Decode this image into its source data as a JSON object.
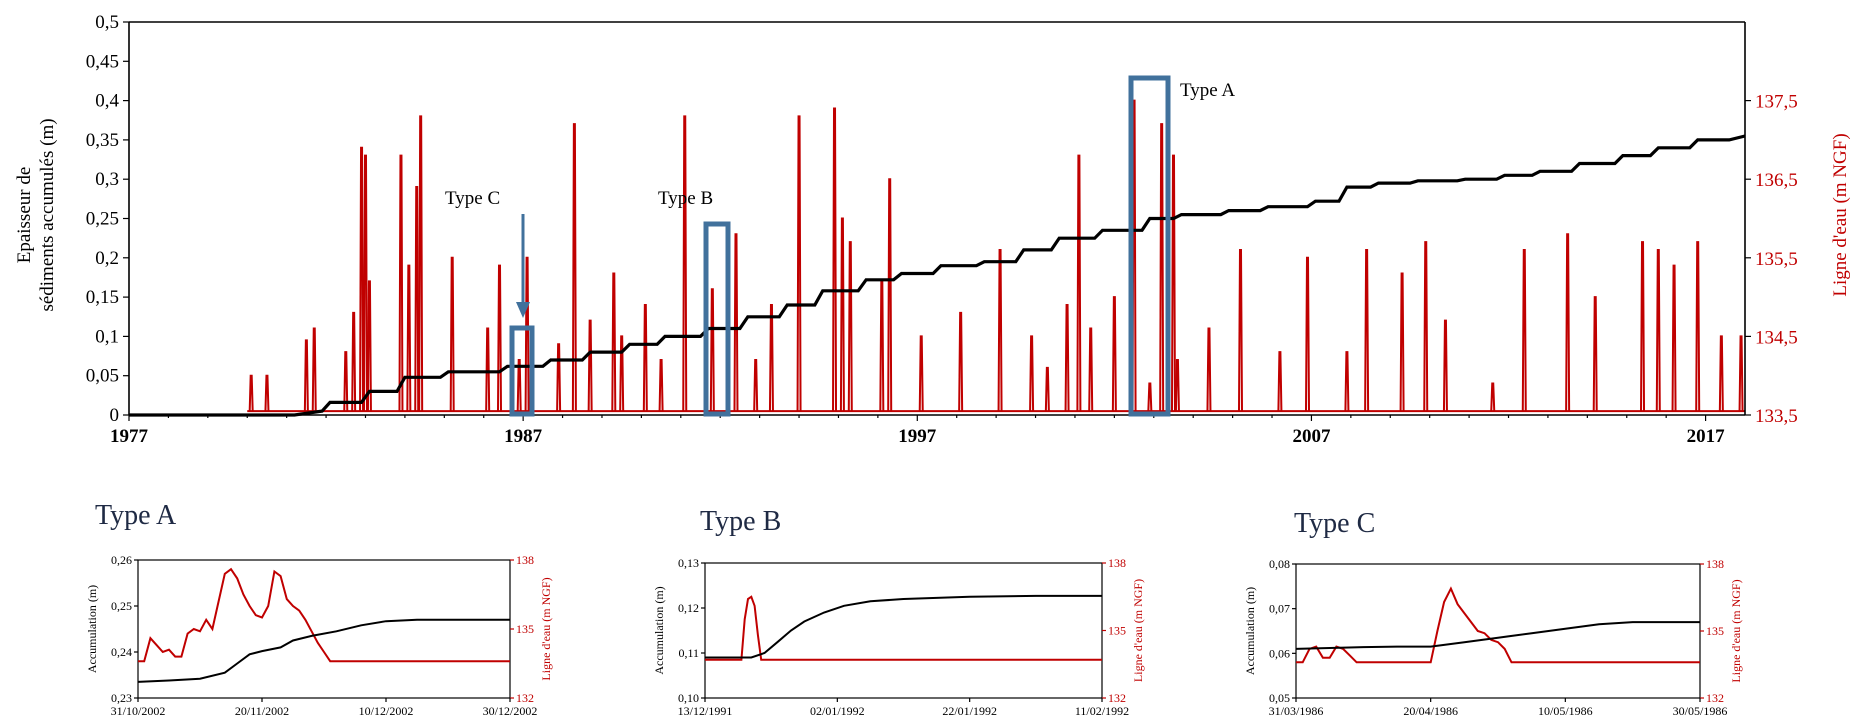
{
  "charts": {
    "main": {
      "y_left_label_line1": "Epaisseur de",
      "y_left_label_line2": "sédiments accumulés (m)",
      "y_right_label": "Ligne d'eau (m NGF)",
      "x_ticks": [
        "1977",
        "1987",
        "1997",
        "2007",
        "2017"
      ],
      "y_left_ticks": [
        "0",
        "0,05",
        "0,1",
        "0,15",
        "0,2",
        "0,25",
        "0,3",
        "0,35",
        "0,4",
        "0,45",
        "0,5"
      ],
      "y_right_ticks": [
        "133,5",
        "134,5",
        "135,5",
        "136,5",
        "137,5"
      ],
      "annotations": {
        "type_a": "Type A",
        "type_b": "Type B",
        "type_c": "Type C"
      }
    },
    "panel_a": {
      "title": "Type A",
      "y_left_label": "Accumulation (m)",
      "y_right_label": "Ligne d'eau (m NGF)",
      "x_ticks": [
        "31/10/2002",
        "20/11/2002",
        "10/12/2002",
        "30/12/2002"
      ],
      "y_left_ticks": [
        "0,23",
        "0,24",
        "0,25",
        "0,26"
      ],
      "y_right_ticks": [
        "132",
        "135",
        "138"
      ]
    },
    "panel_b": {
      "title": "Type B",
      "y_left_label": "Accumulation (m)",
      "y_right_label": "Ligne d'eau (m NGF)",
      "x_ticks": [
        "13/12/1991",
        "02/01/1992",
        "22/01/1992",
        "11/02/1992"
      ],
      "y_left_ticks": [
        "0,10",
        "0,11",
        "0,12",
        "0,13"
      ],
      "y_right_ticks": [
        "132",
        "135",
        "138"
      ]
    },
    "panel_c": {
      "title": "Type C",
      "y_left_label": "Accumulation (m)",
      "y_right_label": "Ligne d'eau (m NGF)",
      "x_ticks": [
        "31/03/1986",
        "20/04/1986",
        "10/05/1986",
        "30/05/1986"
      ],
      "y_left_ticks": [
        "0,05",
        "0,06",
        "0,07",
        "0,08"
      ],
      "y_right_ticks": [
        "132",
        "135",
        "138"
      ]
    }
  },
  "chart_data": [
    {
      "type": "line",
      "xlim": [
        1977,
        2018
      ],
      "ylim_left": [
        0,
        0.5
      ],
      "ylim_right": [
        133.5,
        138.5
      ],
      "x_axis": "year",
      "grid": false,
      "series": [
        {
          "axis": "left",
          "color": "#000000",
          "x": [
            1977,
            1981.2,
            1981.9,
            1982.1,
            1982.9,
            1983.1,
            1983.8,
            1984.0,
            1984.9,
            1985.1,
            1986.4,
            1986.6,
            1987.5,
            1987.7,
            1988.5,
            1988.7,
            1989.5,
            1989.7,
            1990.4,
            1990.6,
            1991.5,
            1991.7,
            1992.5,
            1992.7,
            1993.5,
            1993.7,
            1994.4,
            1994.6,
            1995.5,
            1995.7,
            1996.4,
            1996.6,
            1997.4,
            1997.6,
            1998.5,
            1998.7,
            1999.5,
            1999.7,
            2000.4,
            2000.6,
            2001.5,
            2001.7,
            2002.7,
            2002.9,
            2003.5,
            2003.7,
            2004.7,
            2004.9,
            2005.7,
            2005.9,
            2006.9,
            2007.1,
            2007.7,
            2007.9,
            2008.5,
            2008.7,
            2009.5,
            2009.7,
            2010.7,
            2010.9,
            2011.7,
            2011.9,
            2012.6,
            2012.8,
            2013.6,
            2013.8,
            2014.7,
            2014.9,
            2015.6,
            2015.8,
            2016.6,
            2016.8,
            2017.6,
            2018
          ],
          "y": [
            0,
            0,
            0.005,
            0.016,
            0.016,
            0.03,
            0.03,
            0.048,
            0.048,
            0.055,
            0.055,
            0.062,
            0.062,
            0.07,
            0.07,
            0.08,
            0.08,
            0.09,
            0.09,
            0.1,
            0.1,
            0.11,
            0.11,
            0.125,
            0.125,
            0.14,
            0.14,
            0.158,
            0.158,
            0.172,
            0.172,
            0.18,
            0.18,
            0.19,
            0.19,
            0.195,
            0.195,
            0.21,
            0.21,
            0.225,
            0.225,
            0.235,
            0.235,
            0.25,
            0.25,
            0.255,
            0.255,
            0.26,
            0.26,
            0.265,
            0.265,
            0.272,
            0.272,
            0.29,
            0.29,
            0.295,
            0.295,
            0.298,
            0.298,
            0.3,
            0.3,
            0.305,
            0.305,
            0.31,
            0.31,
            0.32,
            0.32,
            0.33,
            0.33,
            0.34,
            0.34,
            0.35,
            0.35,
            0.355
          ]
        },
        {
          "axis": "right",
          "color": "#c00000",
          "baseline": 133.55,
          "peaks": [
            [
              1980.1,
              134.0
            ],
            [
              1980.5,
              134.0
            ],
            [
              1981.5,
              134.45
            ],
            [
              1981.7,
              134.6
            ],
            [
              1982.5,
              134.3
            ],
            [
              1982.7,
              134.8
            ],
            [
              1982.9,
              136.9
            ],
            [
              1983.0,
              136.8
            ],
            [
              1983.1,
              135.2
            ],
            [
              1983.9,
              136.8
            ],
            [
              1984.1,
              135.4
            ],
            [
              1984.3,
              136.4
            ],
            [
              1984.4,
              137.3
            ],
            [
              1985.2,
              135.5
            ],
            [
              1986.1,
              134.6
            ],
            [
              1986.4,
              135.4
            ],
            [
              1986.9,
              134.2
            ],
            [
              1987.1,
              135.5
            ],
            [
              1987.9,
              134.4
            ],
            [
              1988.3,
              137.2
            ],
            [
              1988.7,
              134.7
            ],
            [
              1989.3,
              135.3
            ],
            [
              1989.5,
              134.5
            ],
            [
              1990.1,
              134.9
            ],
            [
              1990.5,
              134.2
            ],
            [
              1991.1,
              137.3
            ],
            [
              1991.8,
              135.1
            ],
            [
              1992.4,
              135.8
            ],
            [
              1992.9,
              134.2
            ],
            [
              1993.3,
              134.9
            ],
            [
              1994.0,
              137.3
            ],
            [
              1994.9,
              137.4
            ],
            [
              1995.1,
              136.0
            ],
            [
              1995.3,
              135.7
            ],
            [
              1996.1,
              135.2
            ],
            [
              1996.3,
              136.5
            ],
            [
              1997.1,
              134.5
            ],
            [
              1998.1,
              134.8
            ],
            [
              1999.1,
              135.6
            ],
            [
              1999.9,
              134.5
            ],
            [
              2000.3,
              134.1
            ],
            [
              2000.8,
              134.9
            ],
            [
              2001.1,
              136.8
            ],
            [
              2001.4,
              134.6
            ],
            [
              2002.0,
              135.0
            ],
            [
              2002.5,
              137.5
            ],
            [
              2002.9,
              133.9
            ],
            [
              2003.2,
              137.2
            ],
            [
              2003.5,
              136.8
            ],
            [
              2003.6,
              134.2
            ],
            [
              2004.4,
              134.6
            ],
            [
              2005.2,
              135.6
            ],
            [
              2006.2,
              134.3
            ],
            [
              2006.9,
              135.5
            ],
            [
              2007.9,
              134.3
            ],
            [
              2008.4,
              135.6
            ],
            [
              2009.3,
              135.3
            ],
            [
              2009.9,
              135.7
            ],
            [
              2010.4,
              134.7
            ],
            [
              2011.6,
              133.9
            ],
            [
              2012.4,
              135.6
            ],
            [
              2013.5,
              135.8
            ],
            [
              2014.2,
              135.0
            ],
            [
              2015.4,
              135.7
            ],
            [
              2015.8,
              135.6
            ],
            [
              2016.2,
              135.4
            ],
            [
              2016.8,
              135.7
            ],
            [
              2017.4,
              134.5
            ],
            [
              2017.9,
              134.5
            ]
          ]
        }
      ],
      "annotations": [
        {
          "label": "Type A",
          "x_range": [
            2002.5,
            2003.6
          ]
        },
        {
          "label": "Type B",
          "x_range": [
            1992.1,
            1992.7
          ]
        },
        {
          "label": "Type C",
          "x_range": [
            1986.8,
            1987.3
          ]
        }
      ]
    },
    {
      "type": "line",
      "panel": "Type A",
      "x_days": [
        0,
        60
      ],
      "ylim_left": [
        0.23,
        0.26
      ],
      "ylim_right": [
        132,
        138
      ],
      "series": [
        {
          "axis": "left",
          "color": "#000000",
          "x": [
            0,
            5,
            10,
            14,
            16,
            18,
            20,
            23,
            25,
            28,
            32,
            36,
            40,
            45,
            50,
            55,
            60
          ],
          "y": [
            0.2335,
            0.2338,
            0.2342,
            0.2355,
            0.2375,
            0.2395,
            0.2402,
            0.241,
            0.2425,
            0.2435,
            0.2445,
            0.2458,
            0.2467,
            0.247,
            0.247,
            0.247,
            0.247
          ]
        },
        {
          "axis": "right",
          "color": "#c00000",
          "x": [
            0,
            1,
            2,
            3,
            4,
            5,
            6,
            7,
            8,
            9,
            10,
            11,
            12,
            13,
            14,
            15,
            16,
            17,
            18,
            19,
            20,
            21,
            22,
            23,
            24,
            25,
            26,
            27,
            28,
            29,
            30,
            31,
            32,
            60
          ],
          "y": [
            133.6,
            133.6,
            134.6,
            134.3,
            134.0,
            134.1,
            133.8,
            133.8,
            134.8,
            135.0,
            134.9,
            135.4,
            135.0,
            136.2,
            137.4,
            137.6,
            137.2,
            136.5,
            136.0,
            135.6,
            135.5,
            136.0,
            137.5,
            137.3,
            136.3,
            136.0,
            135.8,
            135.4,
            134.9,
            134.4,
            134.0,
            133.6,
            133.6,
            133.6
          ]
        }
      ]
    },
    {
      "type": "line",
      "panel": "Type B",
      "x_days": [
        0,
        60
      ],
      "ylim_left": [
        0.1,
        0.13
      ],
      "ylim_right": [
        132,
        138
      ],
      "series": [
        {
          "axis": "left",
          "color": "#000000",
          "x": [
            0,
            7,
            9,
            11,
            13,
            15,
            18,
            21,
            25,
            30,
            40,
            50,
            60
          ],
          "y": [
            0.109,
            0.109,
            0.11,
            0.1125,
            0.115,
            0.117,
            0.119,
            0.1205,
            0.1215,
            0.122,
            0.1225,
            0.1227,
            0.1227
          ]
        },
        {
          "axis": "right",
          "color": "#c00000",
          "x": [
            0,
            5.5,
            6,
            6.5,
            7,
            7.5,
            8,
            8.5,
            9,
            60
          ],
          "y": [
            133.7,
            133.7,
            135.5,
            136.4,
            136.5,
            136.1,
            134.8,
            133.7,
            133.7,
            133.7
          ]
        }
      ]
    },
    {
      "type": "line",
      "panel": "Type C",
      "x_days": [
        0,
        60
      ],
      "ylim_left": [
        0.05,
        0.08
      ],
      "ylim_right": [
        132,
        138
      ],
      "series": [
        {
          "axis": "left",
          "color": "#000000",
          "x": [
            0,
            5,
            10,
            15,
            20,
            25,
            30,
            35,
            40,
            45,
            50,
            55,
            60
          ],
          "y": [
            0.061,
            0.0612,
            0.0614,
            0.0615,
            0.0615,
            0.0625,
            0.0635,
            0.0645,
            0.0655,
            0.0665,
            0.067,
            0.067,
            0.067
          ]
        },
        {
          "axis": "right",
          "color": "#c00000",
          "x": [
            0,
            1,
            2,
            3,
            4,
            5,
            6,
            7,
            8,
            9,
            10,
            20,
            21,
            22,
            23,
            24,
            25,
            26,
            27,
            28,
            29,
            30,
            31,
            32,
            33,
            60
          ],
          "y": [
            133.6,
            133.6,
            134.2,
            134.3,
            133.8,
            133.8,
            134.3,
            134.2,
            133.9,
            133.6,
            133.6,
            133.6,
            135.0,
            136.3,
            136.9,
            136.2,
            135.8,
            135.4,
            135.0,
            134.9,
            134.6,
            134.5,
            134.2,
            133.6,
            133.6,
            133.6
          ]
        }
      ]
    }
  ]
}
